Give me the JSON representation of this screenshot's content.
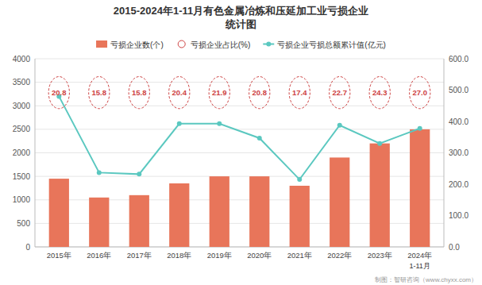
{
  "chart_data": {
    "type": "bar",
    "title": "2015-2024年1-11月有色金属冶炼和压延加工业亏损企业",
    "subtitle": "统计图",
    "annotations": [
      "1-11月"
    ],
    "source": "制图：智研咨询（www.chyxx.com）",
    "categories": [
      "2015年",
      "2016年",
      "2017年",
      "2018年",
      "2019年",
      "2020年",
      "2021年",
      "2022年",
      "2023年",
      "2024年"
    ],
    "series": [
      {
        "name": "亏损企业数(个)",
        "type": "bar",
        "color": "#E8755A",
        "values": [
          1450,
          1050,
          1100,
          1350,
          1500,
          1500,
          1300,
          1900,
          2200,
          2500
        ]
      },
      {
        "name": "亏损企业占比(%)",
        "type": "ellipse",
        "color": "#CD4040",
        "line_style": "dashed",
        "values": [
          20.8,
          15.8,
          15.8,
          20.4,
          21.9,
          20.8,
          17.4,
          22.7,
          24.3,
          27.0
        ],
        "value_labels": [
          "20.8",
          "15.8",
          "15.8",
          "20.4",
          "21.9",
          "20.8",
          "17.4",
          "22.7",
          "24.3",
          "27.0"
        ],
        "data_labels": true
      },
      {
        "name": "亏损企业亏损总额累计值(亿元)",
        "type": "line",
        "axis": "y2",
        "color": "#5BC8C0",
        "marker": "circle",
        "line_style": "solid",
        "values": [
          480,
          237,
          232,
          393,
          393,
          347,
          215,
          388,
          330,
          378
        ]
      }
    ],
    "ylim": [
      0,
      4000
    ],
    "yticks": [
      0,
      500,
      1000,
      1500,
      2000,
      2500,
      3000,
      3500,
      4000
    ],
    "y2lim": [
      0,
      600
    ],
    "y2ticks": [
      {
        "value": 0,
        "label": "0.0"
      },
      {
        "value": 100,
        "label": "100.0"
      },
      {
        "value": 200,
        "label": "200.0"
      },
      {
        "value": 300,
        "label": "300.0"
      },
      {
        "value": 400,
        "label": "400.0"
      },
      {
        "value": 500,
        "label": "500.0"
      },
      {
        "value": 600,
        "label": "600.0"
      }
    ],
    "grid": true,
    "legend": "top"
  }
}
